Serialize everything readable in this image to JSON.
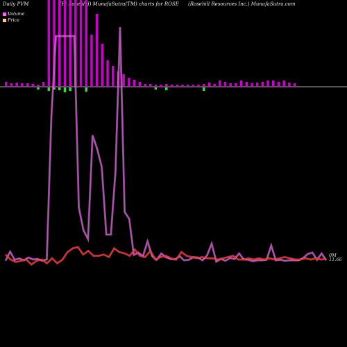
{
  "header": {
    "left": "Daily PVM",
    "middle": "(Ri Sosenhd) MunafaSutra(TM) charts for ROSE",
    "right": "(Rosehill Resources Inc.) MunafaSutra.com"
  },
  "legend": {
    "volume": "Volume",
    "price": "Price",
    "volume_color": "#ff66ff",
    "price_color": "#ffcc88"
  },
  "labels": {
    "volume_last": "0M",
    "price_last": "11.66"
  },
  "colors": {
    "up_bar": "#cc00cc",
    "down_bar": "#33dd33",
    "volume_line": "#cc44cc",
    "price_line": "#ff2222",
    "baseline": "#aaaaaa"
  },
  "chart_data": {
    "type": "bar",
    "bars": [
      {
        "h": 7,
        "up": true
      },
      {
        "h": 5,
        "up": true
      },
      {
        "h": 6,
        "up": true
      },
      {
        "h": 5,
        "up": true
      },
      {
        "h": 5,
        "up": true
      },
      {
        "h": 4,
        "up": true
      },
      {
        "h": 3,
        "up": false
      },
      {
        "h": 7,
        "up": true
      },
      {
        "h": 140,
        "up": true
      },
      {
        "h": 140,
        "up": true
      },
      {
        "h": 140,
        "up": true
      },
      {
        "h": 140,
        "up": true
      },
      {
        "h": 140,
        "up": true
      },
      {
        "h": 140,
        "up": true
      },
      {
        "h": 140,
        "up": true
      },
      {
        "h": 140,
        "up": true
      },
      {
        "h": 75,
        "up": true
      },
      {
        "h": 105,
        "up": true
      },
      {
        "h": 62,
        "up": true
      },
      {
        "h": 38,
        "up": true
      },
      {
        "h": 30,
        "up": true
      },
      {
        "h": 22,
        "up": true
      },
      {
        "h": 18,
        "up": true
      },
      {
        "h": 13,
        "up": true
      },
      {
        "h": 10,
        "up": true
      },
      {
        "h": 7,
        "up": true
      },
      {
        "h": 4,
        "up": true
      },
      {
        "h": 4,
        "up": true
      },
      {
        "h": 3,
        "up": false
      },
      {
        "h": 3,
        "up": true
      },
      {
        "h": 4,
        "up": false
      },
      {
        "h": 3,
        "up": true
      },
      {
        "h": 3,
        "up": true
      },
      {
        "h": 3,
        "up": true
      },
      {
        "h": 3,
        "up": true
      },
      {
        "h": 3,
        "up": true
      },
      {
        "h": 3,
        "up": true
      },
      {
        "h": 4,
        "up": false
      },
      {
        "h": 6,
        "up": true
      },
      {
        "h": 4,
        "up": true
      },
      {
        "h": 9,
        "up": true
      },
      {
        "h": 7,
        "up": true
      },
      {
        "h": 5,
        "up": true
      },
      {
        "h": 5,
        "up": true
      },
      {
        "h": 9,
        "up": true
      },
      {
        "h": 7,
        "up": true
      },
      {
        "h": 5,
        "up": true
      },
      {
        "h": 6,
        "up": true
      },
      {
        "h": 7,
        "up": true
      },
      {
        "h": 9,
        "up": true
      },
      {
        "h": 9,
        "up": true
      },
      {
        "h": 7,
        "up": true
      },
      {
        "h": 9,
        "up": true
      },
      {
        "h": 6,
        "up": true
      },
      {
        "h": 5,
        "up": true
      }
    ],
    "down_depth": [
      0,
      0,
      0,
      0,
      0,
      0,
      3,
      0,
      5,
      3,
      4,
      7,
      5,
      0,
      0,
      6,
      0,
      0,
      0,
      0,
      0,
      0,
      0,
      0,
      0,
      0,
      0,
      0,
      3,
      0,
      4,
      0,
      0,
      0,
      0,
      0,
      0,
      5,
      0,
      0,
      0,
      0,
      0,
      0,
      0,
      0,
      0,
      0,
      0,
      0,
      0,
      0,
      0,
      0,
      0
    ],
    "volume_line": [
      2,
      22,
      4,
      7,
      3,
      9,
      5,
      6,
      2,
      5,
      320,
      500,
      500,
      500,
      500,
      500,
      120,
      70,
      50,
      280,
      250,
      210,
      60,
      60,
      200,
      520,
      110,
      95,
      15,
      20,
      12,
      45,
      12,
      4,
      18,
      10,
      6,
      5,
      12,
      3,
      4,
      10,
      9,
      3,
      14,
      40,
      0,
      6,
      2,
      8,
      6,
      18,
      5,
      4,
      1,
      3,
      3,
      4,
      36,
      3,
      4,
      2,
      3,
      3,
      3,
      8,
      17,
      20,
      4,
      18,
      3
    ],
    "price_line": [
      12.0,
      11.6,
      11.4,
      11.5,
      11.6,
      11.2,
      11.5,
      11.6,
      11.3,
      11.7,
      11.3,
      11.6,
      12.2,
      12.5,
      12.6,
      12.0,
      12.3,
      11.9,
      11.9,
      12.0,
      11.8,
      12.5,
      12.2,
      12.1,
      11.9,
      12.4,
      11.9,
      11.8,
      12.3,
      11.6,
      11.8,
      11.9,
      11.7,
      11.6,
      12.2,
      11.9,
      11.8,
      11.7,
      11.8,
      11.7,
      11.7,
      11.6,
      11.7,
      11.8,
      11.9,
      11.6,
      11.6,
      11.7,
      11.6,
      11.7,
      11.6,
      11.7,
      11.6,
      11.7,
      11.8,
      11.7,
      11.6,
      11.6,
      11.7,
      11.6,
      11.7,
      11.6,
      11.66
    ]
  }
}
